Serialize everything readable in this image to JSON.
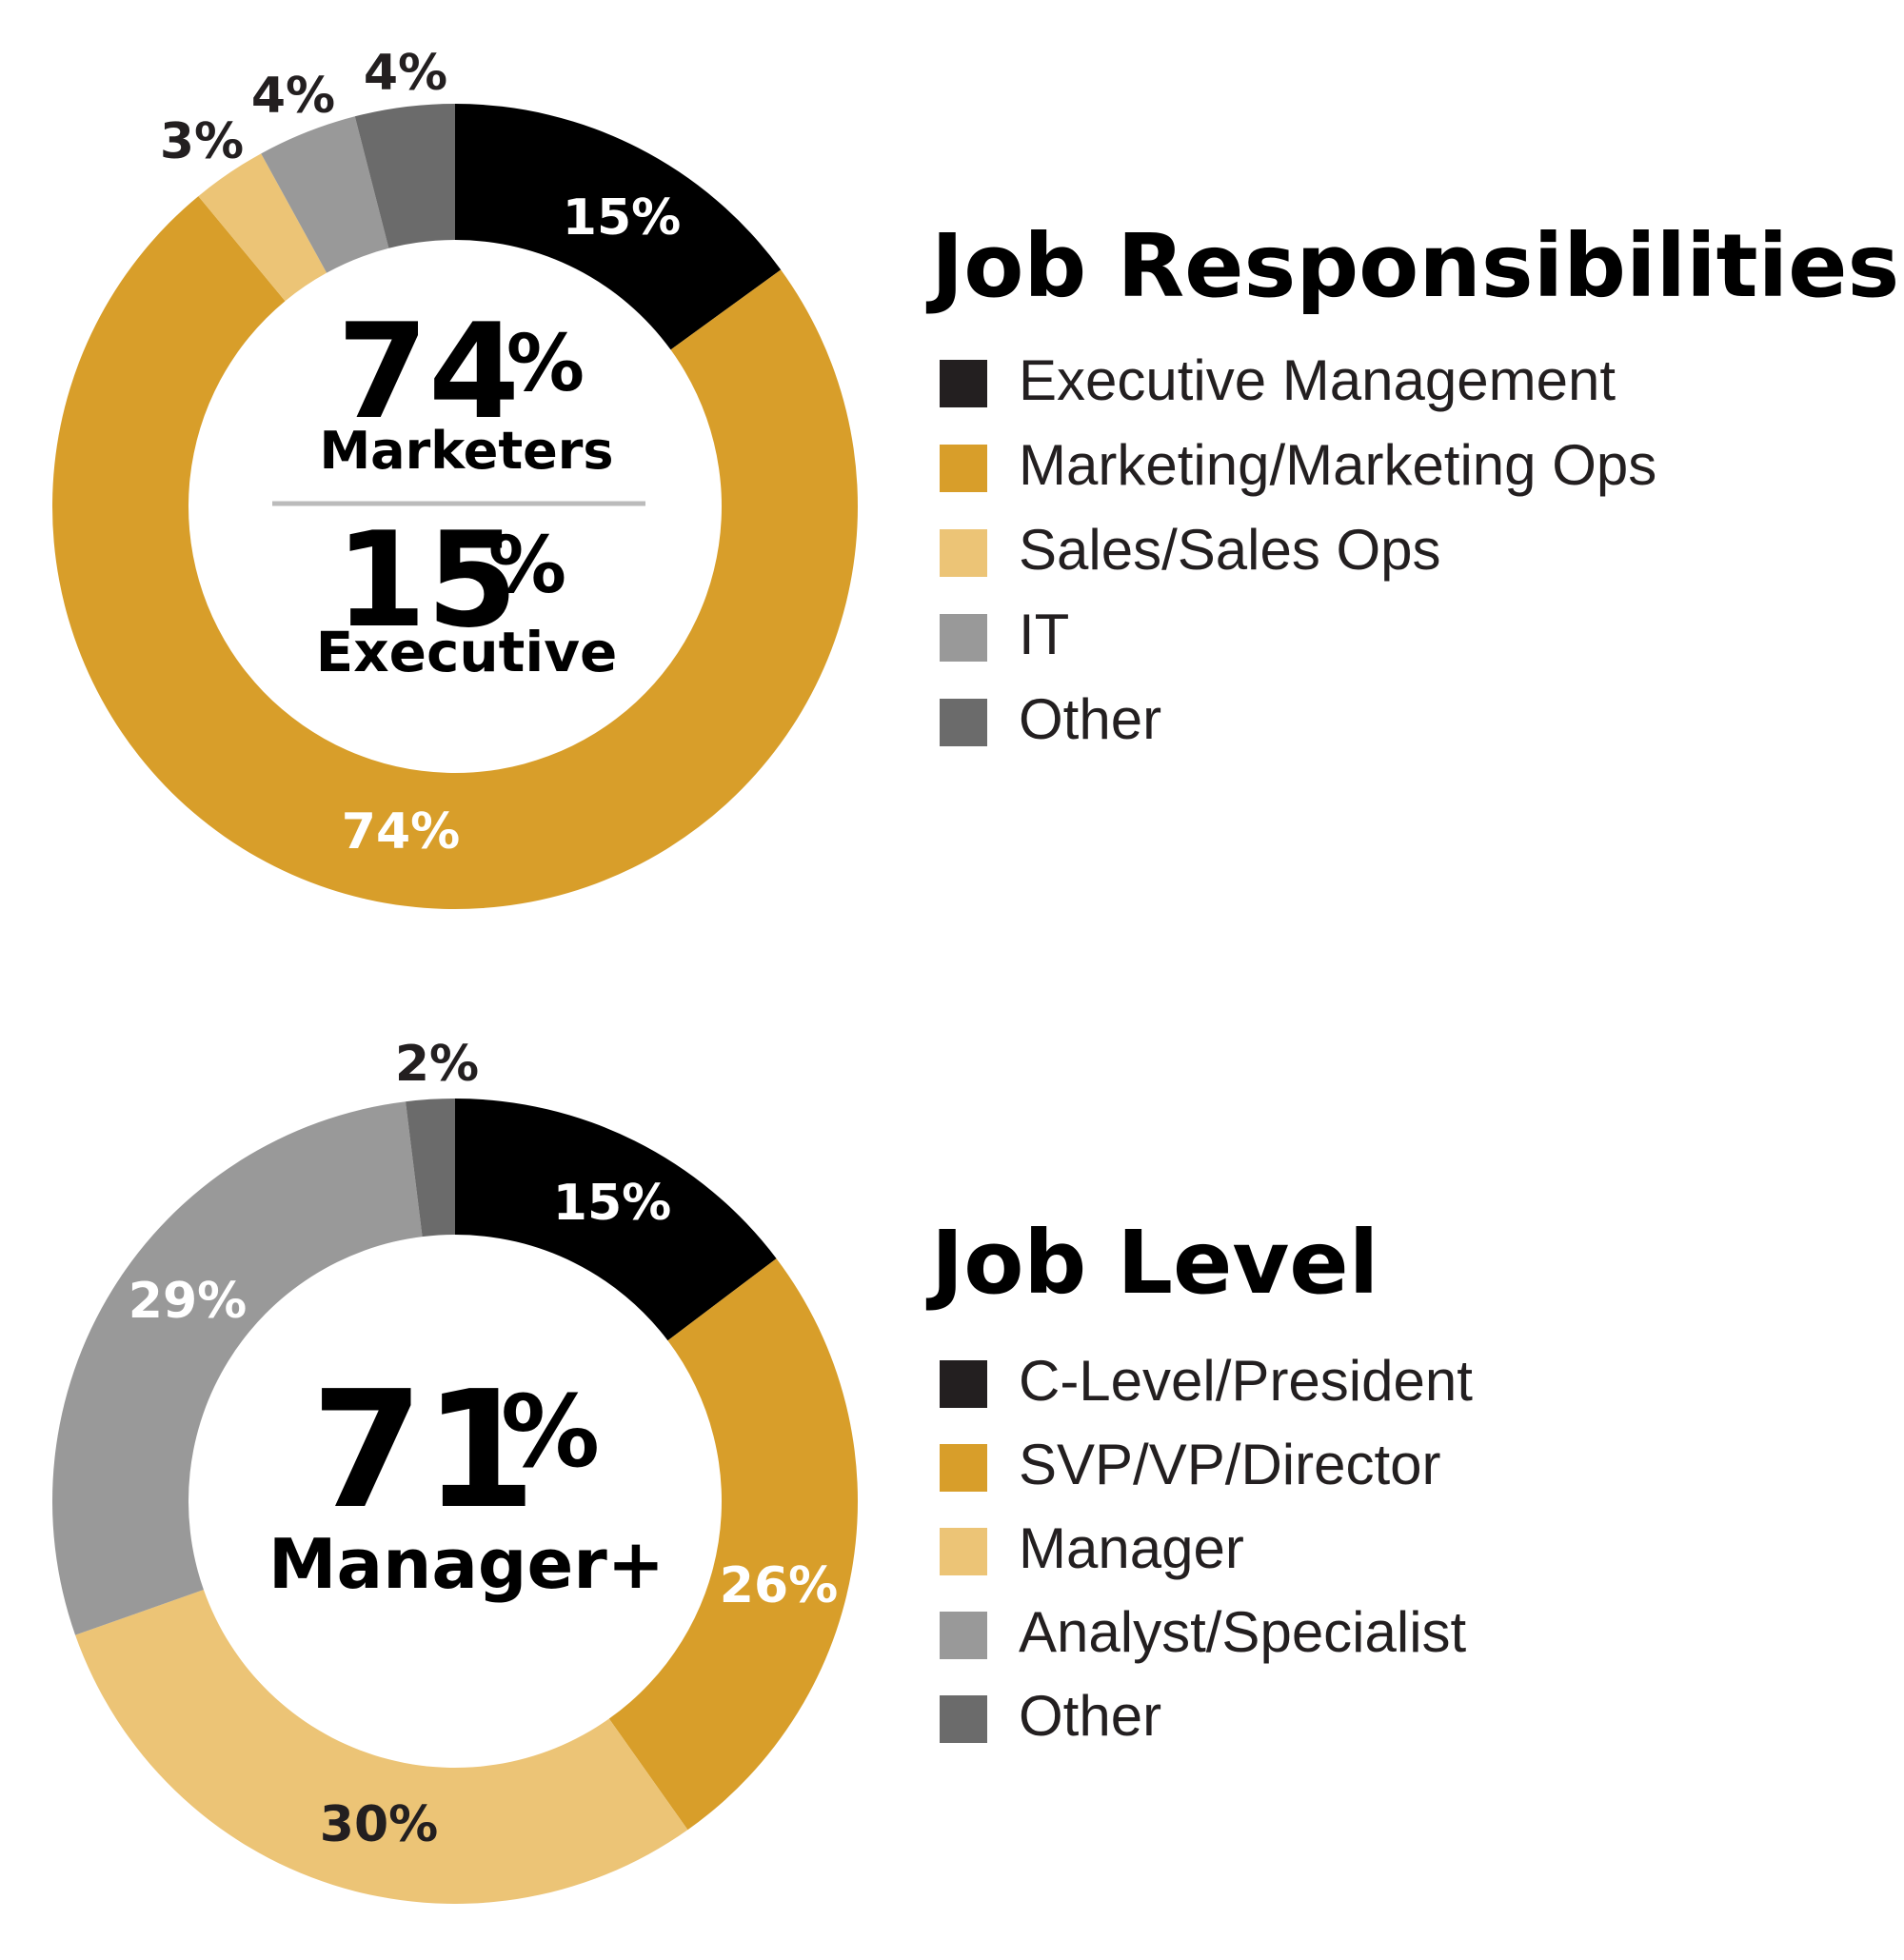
{
  "chart_data": [
    {
      "type": "pie",
      "title": "Job Responsibilities",
      "categories": [
        "Executive Management",
        "Marketing/Marketing Ops",
        "Sales/Sales Ops",
        "IT",
        "Other"
      ],
      "values": [
        15,
        74,
        3,
        4,
        4
      ],
      "slice_labels": [
        "15%",
        "74%",
        "3%",
        "4%",
        "4%"
      ],
      "colors": [
        "#000000",
        "#d89e2a",
        "#ecc476",
        "#999999",
        "#6b6b6b"
      ],
      "label_colors": [
        "#ffffff",
        "#ffffff",
        "#231f20",
        "#231f20",
        "#231f20"
      ],
      "center": [
        {
          "number": "74",
          "pct": "%",
          "word": "Marketers"
        },
        {
          "number": "15",
          "pct": "%",
          "word": "Executive"
        }
      ],
      "legend_placement": "right"
    },
    {
      "type": "pie",
      "title": "Job Level",
      "categories": [
        "C-Level/President",
        "SVP/VP/Director",
        "Manager",
        "Analyst/Specialist",
        "Other"
      ],
      "values": [
        15,
        26,
        30,
        29,
        2
      ],
      "slice_labels": [
        "15%",
        "26%",
        "30%",
        "29%",
        "2%"
      ],
      "colors": [
        "#000000",
        "#d89e2a",
        "#ecc476",
        "#999999",
        "#6b6b6b"
      ],
      "label_colors": [
        "#ffffff",
        "#ffffff",
        "#231f20",
        "#ffffff",
        "#231f20"
      ],
      "center": [
        {
          "number": "71",
          "pct": "%",
          "word": "Manager+"
        }
      ],
      "legend_placement": "right"
    }
  ]
}
